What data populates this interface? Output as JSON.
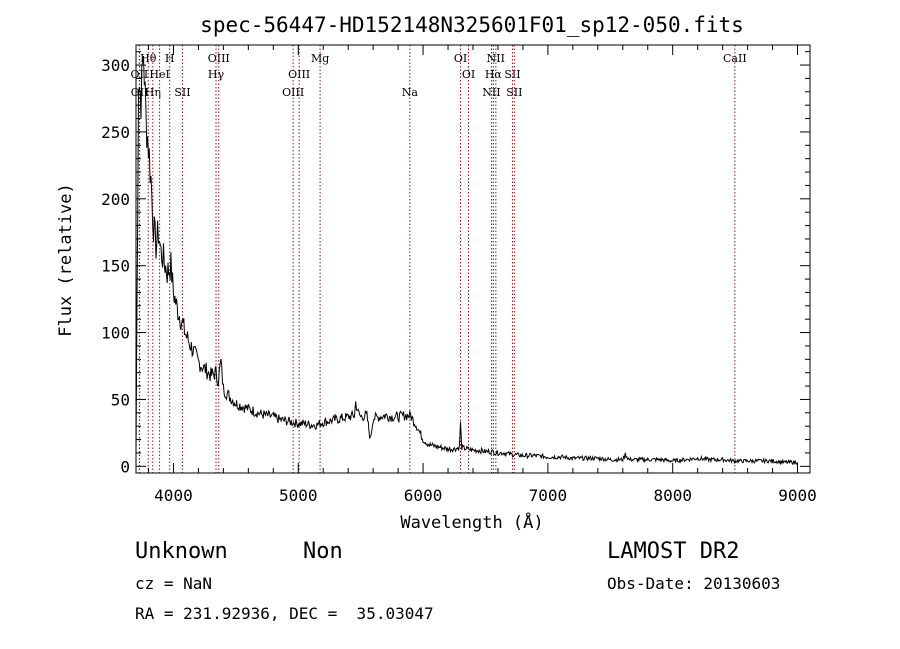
{
  "chart_data": {
    "type": "line",
    "title": "spec-56447-HD152148N325601F01_sp12-050.fits",
    "xlabel": "Wavelength (Å)",
    "ylabel": "Flux (relative)",
    "xlim": [
      3700,
      9100
    ],
    "ylim": [
      -5,
      315
    ],
    "xticks": [
      4000,
      5000,
      6000,
      7000,
      8000,
      9000
    ],
    "yticks": [
      0,
      50,
      100,
      150,
      200,
      250,
      300
    ],
    "grid": false,
    "line_color": "#000000",
    "marker_color": "#8b1a1a",
    "series": [
      {
        "name": "",
        "x": [
          3700,
          3720,
          3740,
          3760,
          3780,
          3800,
          3820,
          3840,
          3860,
          3880,
          3900,
          3920,
          3950,
          3980,
          4000,
          4030,
          4060,
          4100,
          4150,
          4200,
          4250,
          4300,
          4340,
          4360,
          4380,
          4400,
          4450,
          4500,
          4550,
          4600,
          4650,
          4700,
          4750,
          4800,
          4850,
          4900,
          4950,
          5000,
          5050,
          5100,
          5150,
          5200,
          5250,
          5300,
          5350,
          5400,
          5450,
          5460,
          5480,
          5500,
          5550,
          5577,
          5600,
          5650,
          5700,
          5750,
          5800,
          5850,
          5900,
          5950,
          6000,
          6050,
          6100,
          6150,
          6200,
          6250,
          6290,
          6300,
          6310,
          6350,
          6400,
          6450,
          6500,
          6550,
          6600,
          6650,
          6700,
          6800,
          6900,
          7000,
          7100,
          7200,
          7300,
          7400,
          7500,
          7600,
          7620,
          7650,
          7700,
          7800,
          7900,
          8000,
          8100,
          8200,
          8300,
          8400,
          8500,
          8600,
          8700,
          8800,
          8900,
          9000
        ],
        "y": [
          8,
          290,
          275,
          310,
          260,
          240,
          215,
          180,
          165,
          175,
          160,
          155,
          145,
          150,
          130,
          118,
          110,
          98,
          88,
          78,
          73,
          68,
          70,
          64,
          78,
          58,
          52,
          47,
          45,
          43,
          41,
          39,
          38,
          37,
          35,
          34,
          33,
          32,
          32,
          31,
          31,
          33,
          34,
          35,
          36,
          37,
          38,
          48,
          40,
          37,
          38,
          20,
          36,
          37,
          38,
          37,
          37,
          38,
          38,
          30,
          20,
          16,
          15,
          14,
          13,
          13,
          14,
          32,
          14,
          13,
          12,
          12,
          11,
          11,
          10,
          10,
          9,
          8,
          8,
          7,
          7,
          6,
          6,
          6,
          5,
          5,
          9,
          5,
          5,
          5,
          5,
          4,
          5,
          6,
          5,
          5,
          4,
          4,
          4,
          4,
          3,
          3
        ]
      }
    ],
    "line_markers": [
      {
        "label": "OII",
        "x": 3727,
        "row": 2
      },
      {
        "label": "OII",
        "x": 3729,
        "row": 3
      },
      {
        "label": "Hθ",
        "x": 3798,
        "row": 1
      },
      {
        "label": "Hη",
        "x": 3835,
        "row": 3
      },
      {
        "label": "HeI",
        "x": 3889,
        "row": 2
      },
      {
        "label": "H",
        "x": 3970,
        "row": 1
      },
      {
        "label": "SII",
        "x": 4072,
        "row": 3
      },
      {
        "label": "OIII",
        "x": 4363,
        "row": 1
      },
      {
        "label": "Hγ",
        "x": 4341,
        "row": 2
      },
      {
        "label": "OIII",
        "x": 4959,
        "row": 3
      },
      {
        "label": "OIII",
        "x": 5007,
        "row": 2
      },
      {
        "label": "Mg",
        "x": 5175,
        "row": 1
      },
      {
        "label": "Na",
        "x": 5894,
        "row": 3
      },
      {
        "label": "OI",
        "x": 6300,
        "row": 1
      },
      {
        "label": "OI",
        "x": 6364,
        "row": 2
      },
      {
        "label": "NII",
        "x": 6548,
        "row": 3
      },
      {
        "label": "NII",
        "x": 6583,
        "row": 1
      },
      {
        "label": "Hα",
        "x": 6563,
        "row": 2
      },
      {
        "label": "SII",
        "x": 6716,
        "row": 2
      },
      {
        "label": "SII",
        "x": 6731,
        "row": 3
      },
      {
        "label": "CaII",
        "x": 8498,
        "row": 1
      }
    ]
  },
  "info": {
    "class": "Unknown",
    "subclass": "Non",
    "survey": "LAMOST DR2",
    "cz": "cz = NaN",
    "obs_date": "Obs-Date: 20130603",
    "radec": "RA = 231.92936, DEC =  35.03047"
  }
}
